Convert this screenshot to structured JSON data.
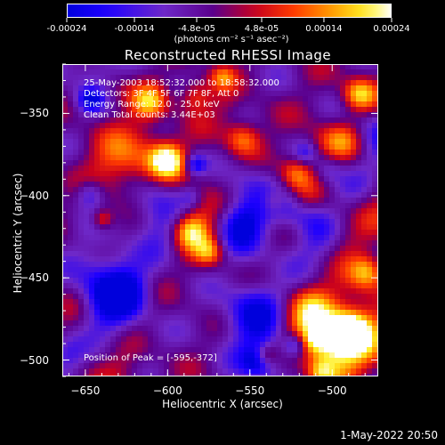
{
  "colorbar": {
    "tick_labels": [
      "-0.00024",
      "-0.00014",
      "-4.8e-05",
      "4.8e-05",
      "0.00014",
      "0.00024"
    ],
    "unit_text": "(photons cm⁻² s⁻¹ asec⁻²)"
  },
  "title": "Reconstructed RHESSI Image",
  "info": {
    "line1": "25-May-2003 18:52:32.000 to 18:58:32.000",
    "line2": "Detectors: 3F 4F 5F 6F 7F 8F, Att 0",
    "line3": "Energy Range: 12.0 - 25.0 keV",
    "line4": "Clean     Total counts: 3.44E+03",
    "peak": "Position of Peak = [-595,-372]"
  },
  "footer_date": "1-May-2022 20:50",
  "chart_data": {
    "type": "heatmap",
    "title": "Reconstructed RHESSI Image",
    "xlabel": "Heliocentric X (arcsec)",
    "ylabel": "Heliocentric Y (arcsec)",
    "xlim": [
      -664,
      -472
    ],
    "ylim": [
      -510,
      -320
    ],
    "xticks": [
      -650,
      -600,
      -550,
      -500
    ],
    "yticks": [
      -350,
      -400,
      -450,
      -500
    ],
    "colorbar_range": [
      -0.00024,
      0.00024
    ],
    "colormap": "blue-purple-red-yellow-white",
    "peak_position": [
      -595,
      -372
    ]
  }
}
